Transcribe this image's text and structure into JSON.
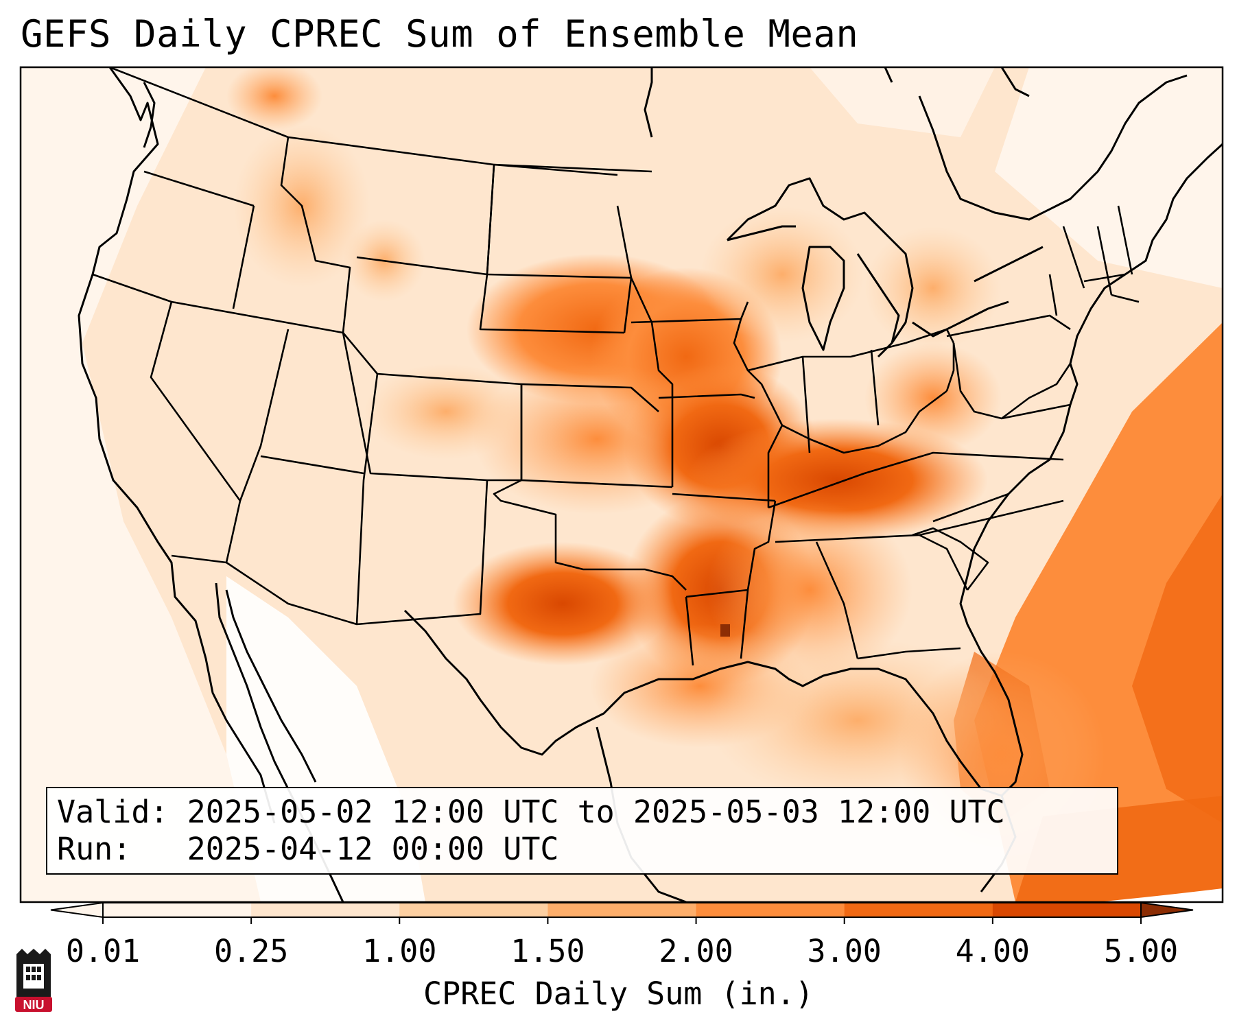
{
  "title": "GEFS Daily CPREC Sum of Ensemble Mean",
  "info": {
    "valid_label": "Valid:",
    "valid_value": "2025-05-02 12:00 UTC to 2025-05-03 12:00 UTC",
    "run_label": "Run:",
    "run_value": "2025-04-12 00:00 UTC"
  },
  "colorbar": {
    "label": "CPREC Daily Sum (in.)",
    "ticks": [
      "0.01",
      "0.25",
      "1.00",
      "1.50",
      "2.00",
      "3.00",
      "4.00",
      "5.00"
    ],
    "colors": [
      "#fff5eb",
      "#fee6ce",
      "#fdd0a2",
      "#fdae6b",
      "#fd8d3c",
      "#f16913",
      "#d94801",
      "#8c2d04"
    ],
    "extend": "both"
  },
  "logo": {
    "text": "NIU",
    "color": "#c8102e"
  }
}
